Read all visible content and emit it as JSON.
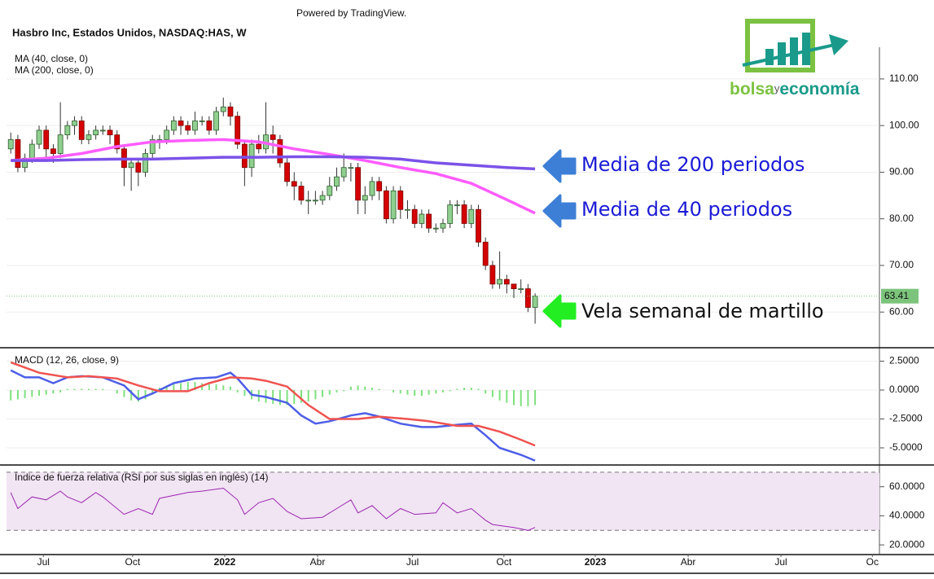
{
  "powered_by": "Powered by TradingView.",
  "logo": {
    "part1": "bolsa",
    "part2": "y",
    "part3": "economía"
  },
  "chart_data": [
    {
      "type": "candlestick",
      "title": "Hasbro Inc, Estados Unidos, NASDAQ:HAS, W",
      "xlim": [
        -0.6,
        122.6
      ],
      "ylim": [
        52.7,
        116.8
      ],
      "yticks": [
        {
          "value": 60,
          "label": "60.00"
        },
        {
          "value": 70,
          "label": "70.00"
        },
        {
          "value": 80,
          "label": "80.00"
        },
        {
          "value": 90,
          "label": "90.00"
        },
        {
          "value": 100,
          "label": "100.00"
        },
        {
          "value": 110,
          "label": "110.00"
        }
      ],
      "grid": true,
      "up_color": "#8fcf8f",
      "down_color": "#d50000",
      "last_value": 63.41,
      "last_color": "#7cc47c",
      "x": [
        0,
        1,
        2,
        3,
        4,
        5,
        6,
        7,
        8,
        9,
        10,
        11,
        12,
        13,
        14,
        15,
        16,
        17,
        18,
        19,
        20,
        21,
        22,
        23,
        24,
        25,
        26,
        27,
        28,
        29,
        30,
        31,
        32,
        33,
        34,
        35,
        36,
        37,
        38,
        39,
        40,
        41,
        42,
        43,
        44,
        45,
        46,
        47,
        48,
        49,
        50,
        51,
        52,
        53,
        54,
        55,
        56,
        57,
        58,
        59,
        60,
        61,
        62,
        63,
        64,
        65,
        66,
        67,
        68,
        69,
        70,
        71,
        72,
        73,
        74
      ],
      "open": [
        95,
        97,
        91,
        93,
        96,
        99,
        95,
        94,
        98,
        100,
        101,
        97,
        98,
        99,
        99,
        98,
        95,
        91,
        92,
        90,
        94,
        97,
        97,
        99,
        101,
        100,
        99,
        101,
        101,
        99,
        103,
        104,
        102,
        96,
        91,
        96,
        95,
        98,
        97,
        92,
        88,
        87,
        84,
        84,
        84,
        85,
        87,
        89,
        91,
        91,
        84,
        85,
        88,
        86,
        80,
        86,
        82,
        82,
        79,
        81,
        78,
        78,
        79,
        83,
        83,
        79,
        82,
        75,
        70,
        66,
        67,
        66,
        65,
        65,
        61
      ],
      "high": [
        98.5,
        98,
        94,
        97,
        100,
        100,
        96,
        105,
        101,
        102,
        102,
        99,
        100,
        100,
        100,
        99,
        96,
        93,
        93,
        95,
        98,
        98,
        100,
        102,
        102,
        101,
        103,
        102,
        102,
        104,
        106,
        105,
        103,
        97,
        97,
        98,
        105,
        100,
        98,
        93,
        90,
        88,
        86,
        86,
        86,
        89,
        91,
        94,
        92,
        92,
        87,
        89,
        89,
        87,
        87,
        87,
        84,
        83,
        82,
        82,
        79,
        80,
        84,
        84,
        84,
        83,
        83,
        76,
        71,
        73,
        68,
        66,
        67,
        66,
        64
      ],
      "low": [
        94,
        90,
        90,
        92,
        95,
        93,
        92,
        93,
        97,
        98,
        96,
        96,
        97,
        98,
        96,
        94,
        87,
        86,
        87,
        89,
        93,
        95,
        96,
        98,
        98,
        98,
        98,
        100,
        98,
        98,
        102,
        100,
        95,
        87,
        89,
        94,
        94,
        94,
        91,
        87,
        84,
        83,
        81,
        83,
        83,
        84,
        86,
        88,
        88,
        81,
        81,
        84,
        84,
        79,
        79,
        80,
        80,
        78,
        78,
        77,
        77,
        77,
        78,
        81,
        78,
        78,
        74,
        69,
        65,
        65,
        64,
        63,
        64,
        60,
        57.5
      ],
      "close": [
        97,
        91,
        93,
        96,
        99,
        95,
        94,
        98,
        100,
        101,
        97,
        98,
        99,
        99,
        98,
        95,
        91,
        92,
        90,
        94,
        97,
        97,
        99,
        101,
        100,
        99,
        101,
        101,
        99,
        103,
        104,
        102,
        96,
        91,
        96,
        95,
        98,
        97,
        92,
        88,
        87,
        84,
        84,
        84,
        85,
        87,
        89,
        91,
        91,
        84,
        85,
        88,
        86,
        80,
        86,
        82,
        82,
        79,
        81,
        78,
        78,
        79,
        83,
        83,
        79,
        82,
        75,
        70,
        66,
        67,
        66,
        65,
        65,
        61,
        63.41
      ],
      "series": [
        {
          "name": "MA (40, close, 0)",
          "color": "#ff5cff",
          "x": [
            0,
            5,
            10,
            15,
            20,
            25,
            30,
            35,
            40,
            45,
            50,
            55,
            60,
            65,
            70,
            74
          ],
          "values": [
            92.5,
            93,
            94,
            95.5,
            96.5,
            96.8,
            97,
            96.5,
            95,
            93.8,
            92.5,
            91,
            89.7,
            87.6,
            84.1,
            81.2
          ]
        },
        {
          "name": "MA (200, close, 0)",
          "color": "#7b52e8",
          "x": [
            0,
            5,
            10,
            15,
            20,
            25,
            30,
            35,
            40,
            45,
            50,
            55,
            60,
            65,
            70,
            74
          ],
          "values": [
            92.5,
            92.5,
            92.7,
            92.8,
            92.8,
            93,
            93.2,
            93.2,
            93.3,
            93.3,
            93.2,
            92.8,
            92,
            91.5,
            91,
            90.7
          ]
        }
      ],
      "annotations": [
        "Media de 200 periodos",
        "Media de 40 periodos",
        "Vela semanal de martillo"
      ]
    },
    {
      "type": "line",
      "title": "MACD (12, 26, close, 9)",
      "xlim": [
        -0.6,
        122.6
      ],
      "ylim": [
        -6.41,
        3.59
      ],
      "yticks": [
        {
          "value": -5,
          "label": "-5.0000"
        },
        {
          "value": -2.5,
          "label": "-2.5000"
        },
        {
          "value": 0,
          "label": "0.0000"
        },
        {
          "value": 2.5,
          "label": "2.5000"
        }
      ],
      "grid": true,
      "histogram": {
        "color": "#7ee07e",
        "x": [
          0,
          1,
          2,
          3,
          4,
          5,
          6,
          7,
          8,
          9,
          10,
          11,
          12,
          13,
          14,
          15,
          16,
          17,
          18,
          19,
          20,
          21,
          22,
          23,
          24,
          25,
          26,
          27,
          28,
          29,
          30,
          31,
          32,
          33,
          34,
          35,
          36,
          37,
          38,
          39,
          40,
          41,
          42,
          43,
          44,
          45,
          46,
          47,
          48,
          49,
          50,
          51,
          52,
          53,
          54,
          55,
          56,
          57,
          58,
          59,
          60,
          61,
          62,
          63,
          64,
          65,
          66,
          67,
          68,
          69,
          70,
          71,
          72,
          73,
          74
        ],
        "values": [
          -0.9,
          -0.8,
          -0.7,
          -0.6,
          -0.5,
          -0.4,
          -0.3,
          -0.2,
          0.1,
          0.1,
          0.1,
          0.1,
          0.1,
          0.1,
          0.0,
          -0.3,
          -0.6,
          -0.9,
          -1.0,
          -0.8,
          -0.4,
          0.2,
          0.4,
          0.5,
          0.6,
          0.7,
          0.7,
          0.6,
          0.5,
          0.5,
          0.4,
          0.3,
          -0.2,
          -0.5,
          -0.8,
          -1.0,
          -1.1,
          -1.2,
          -1.3,
          -1.3,
          -1.2,
          -1.1,
          -1.0,
          -0.8,
          -0.6,
          -0.4,
          -0.2,
          -0.1,
          0.3,
          0.4,
          0.3,
          0.2,
          0.1,
          0.0,
          -0.2,
          -0.3,
          -0.4,
          -0.5,
          -0.5,
          -0.4,
          -0.3,
          -0.2,
          -0.1,
          0.1,
          0.2,
          0.2,
          0.1,
          -0.3,
          -0.6,
          -0.9,
          -1.1,
          -1.3,
          -1.4,
          -1.4,
          -1.3
        ]
      },
      "series": [
        {
          "color": "#4d5ee8",
          "x": [
            0,
            2,
            4,
            6,
            8,
            10,
            13,
            16,
            18,
            20,
            23,
            26,
            29,
            31,
            32,
            34,
            36,
            39,
            41,
            43,
            45,
            48,
            50,
            52,
            55,
            58,
            60,
            63,
            65,
            67,
            69,
            72,
            74
          ],
          "values": [
            1.7,
            1.1,
            1.1,
            0.6,
            1.1,
            1.2,
            1.1,
            0.4,
            -0.8,
            -0.3,
            0.6,
            1.0,
            1.1,
            1.5,
            1.0,
            -0.4,
            -0.6,
            -1.1,
            -2.2,
            -2.9,
            -2.7,
            -2.2,
            -2.0,
            -2.3,
            -2.9,
            -3.2,
            -3.2,
            -3.0,
            -2.9,
            -3.9,
            -5.0,
            -5.6,
            -6.1
          ]
        },
        {
          "color": "#ef5350",
          "x": [
            0,
            4,
            8,
            11,
            15,
            18,
            21,
            25,
            28,
            31,
            34,
            36,
            39,
            42,
            45,
            49,
            52,
            56,
            59,
            63,
            66,
            69,
            72,
            74
          ],
          "values": [
            2.4,
            1.5,
            1.1,
            1.2,
            1.0,
            0.4,
            -0.1,
            -0.1,
            0.6,
            1.1,
            1.0,
            0.8,
            0.3,
            -1.3,
            -2.5,
            -2.5,
            -2.3,
            -2.5,
            -2.7,
            -3.1,
            -3.1,
            -3.6,
            -4.3,
            -4.8
          ]
        }
      ]
    },
    {
      "type": "line",
      "title": "Índice de fuerza relativa (RSI por sus siglas en inglés) (14)",
      "xlim": [
        -0.6,
        122.6
      ],
      "ylim": [
        13.9,
        74.4
      ],
      "yticks": [
        {
          "value": 20,
          "label": "20.0000"
        },
        {
          "value": 40,
          "label": "40.0000"
        },
        {
          "value": 60,
          "label": "60.0000"
        }
      ],
      "band": [
        30,
        70
      ],
      "band_color": "#f1e4f3",
      "xticks": [
        {
          "value": 4.6,
          "label": "Jul"
        },
        {
          "value": 17.2,
          "label": "Oct"
        },
        {
          "value": 30.2,
          "label": "2022"
        },
        {
          "value": 43.3,
          "label": "Abr"
        },
        {
          "value": 56.7,
          "label": "Jul"
        },
        {
          "value": 69.6,
          "label": "Oct"
        },
        {
          "value": 82.5,
          "label": "2023"
        },
        {
          "value": 95.6,
          "label": "Abr"
        },
        {
          "value": 108.7,
          "label": "Jul"
        },
        {
          "value": 121.6,
          "label": "Oc"
        }
      ],
      "series": [
        {
          "color": "#9c27b0",
          "x": [
            0,
            1,
            3,
            5,
            7,
            8,
            10,
            12,
            13,
            16,
            18,
            20,
            21,
            25,
            27,
            30,
            32,
            33,
            35,
            37,
            39,
            41,
            44,
            46,
            48,
            49,
            51,
            53,
            55,
            57,
            60,
            61,
            63,
            65,
            67,
            68,
            71,
            73,
            74
          ],
          "values": [
            56,
            45,
            53,
            51,
            57,
            53,
            49,
            56,
            53,
            41,
            45,
            41,
            52,
            56,
            57,
            59,
            51,
            41,
            49,
            52,
            43,
            38,
            39,
            45,
            51,
            42,
            47,
            38,
            45,
            41,
            42,
            49,
            42,
            45,
            37,
            34,
            32,
            30,
            32
          ]
        }
      ]
    }
  ]
}
